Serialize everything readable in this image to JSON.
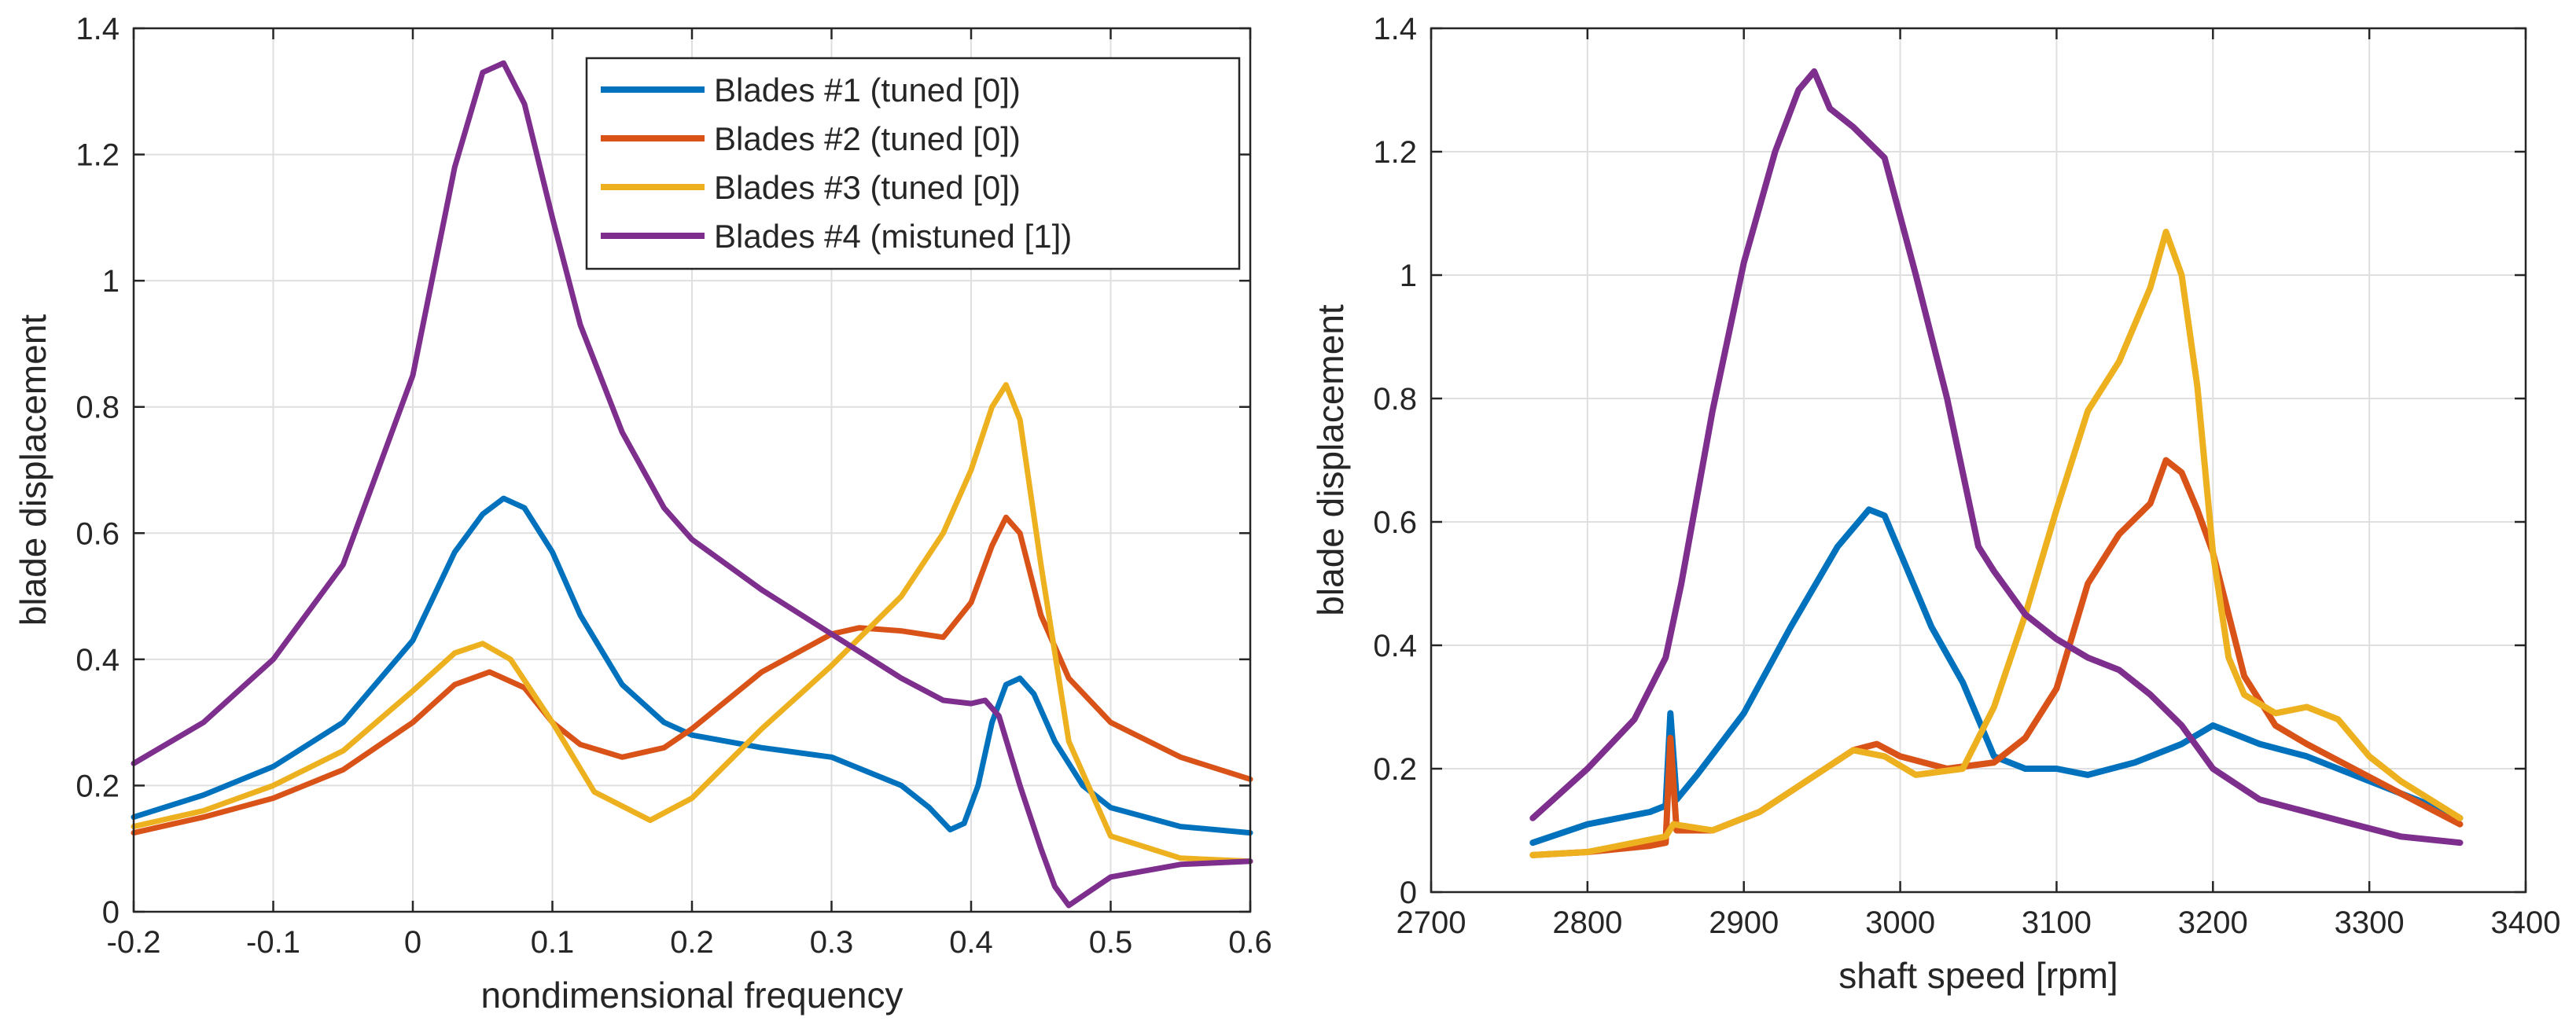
{
  "chart_data": [
    {
      "type": "line",
      "xlabel": "nondimensional frequency",
      "ylabel": "blade displacement",
      "xlim": [
        -0.2,
        0.6
      ],
      "ylim": [
        0,
        1.4
      ],
      "xticks": [
        "-0.2",
        "-0.1",
        "0",
        "0.1",
        "0.2",
        "0.3",
        "0.4",
        "0.5",
        "0.6"
      ],
      "yticks": [
        "0",
        "0.2",
        "0.4",
        "0.6",
        "0.8",
        "1",
        "1.2",
        "1.4"
      ],
      "grid": true,
      "legend_position": "top-right",
      "series": [
        {
          "name": "Blades #1 (tuned [0])",
          "color": "#0072BD",
          "x": [
            -0.2,
            -0.15,
            -0.1,
            -0.05,
            0,
            0.03,
            0.05,
            0.065,
            0.08,
            0.1,
            0.12,
            0.15,
            0.18,
            0.2,
            0.25,
            0.3,
            0.35,
            0.37,
            0.385,
            0.395,
            0.405,
            0.415,
            0.425,
            0.435,
            0.445,
            0.46,
            0.48,
            0.5,
            0.55,
            0.6
          ],
          "values": [
            0.15,
            0.185,
            0.23,
            0.3,
            0.43,
            0.57,
            0.63,
            0.655,
            0.64,
            0.57,
            0.47,
            0.36,
            0.3,
            0.28,
            0.26,
            0.245,
            0.2,
            0.165,
            0.13,
            0.14,
            0.2,
            0.3,
            0.36,
            0.37,
            0.345,
            0.27,
            0.2,
            0.165,
            0.135,
            0.125
          ]
        },
        {
          "name": "Blades #2 (tuned [0])",
          "color": "#D95319",
          "x": [
            -0.2,
            -0.15,
            -0.1,
            -0.05,
            0,
            0.03,
            0.055,
            0.08,
            0.1,
            0.12,
            0.15,
            0.18,
            0.2,
            0.25,
            0.3,
            0.32,
            0.35,
            0.38,
            0.4,
            0.415,
            0.425,
            0.435,
            0.45,
            0.47,
            0.5,
            0.55,
            0.6
          ],
          "values": [
            0.125,
            0.15,
            0.18,
            0.225,
            0.3,
            0.36,
            0.38,
            0.355,
            0.3,
            0.265,
            0.245,
            0.26,
            0.29,
            0.38,
            0.44,
            0.45,
            0.445,
            0.435,
            0.49,
            0.58,
            0.625,
            0.6,
            0.47,
            0.37,
            0.3,
            0.245,
            0.21
          ]
        },
        {
          "name": "Blades #3 (tuned [0])",
          "color": "#EDB120",
          "x": [
            -0.2,
            -0.15,
            -0.1,
            -0.05,
            0,
            0.03,
            0.05,
            0.07,
            0.1,
            0.13,
            0.17,
            0.2,
            0.25,
            0.3,
            0.35,
            0.38,
            0.4,
            0.415,
            0.425,
            0.435,
            0.45,
            0.47,
            0.5,
            0.55,
            0.6
          ],
          "values": [
            0.135,
            0.16,
            0.2,
            0.255,
            0.35,
            0.41,
            0.425,
            0.4,
            0.3,
            0.19,
            0.145,
            0.18,
            0.29,
            0.39,
            0.5,
            0.6,
            0.7,
            0.8,
            0.835,
            0.78,
            0.55,
            0.27,
            0.12,
            0.085,
            0.08
          ]
        },
        {
          "name": "Blades #4 (mistuned [1])",
          "color": "#7E2F8E",
          "x": [
            -0.2,
            -0.15,
            -0.1,
            -0.05,
            0,
            0.03,
            0.05,
            0.065,
            0.08,
            0.1,
            0.12,
            0.15,
            0.18,
            0.2,
            0.25,
            0.3,
            0.35,
            0.38,
            0.4,
            0.41,
            0.42,
            0.435,
            0.45,
            0.46,
            0.47,
            0.48,
            0.5,
            0.55,
            0.6
          ],
          "values": [
            0.235,
            0.3,
            0.4,
            0.55,
            0.85,
            1.18,
            1.33,
            1.345,
            1.28,
            1.1,
            0.93,
            0.76,
            0.64,
            0.59,
            0.51,
            0.44,
            0.37,
            0.335,
            0.33,
            0.335,
            0.31,
            0.2,
            0.1,
            0.04,
            0.01,
            0.025,
            0.055,
            0.075,
            0.08
          ]
        }
      ]
    },
    {
      "type": "line",
      "xlabel": "shaft speed [rpm]",
      "ylabel": "blade displacement",
      "xlim": [
        2700,
        3400
      ],
      "ylim": [
        0,
        1.4
      ],
      "xticks": [
        "2700",
        "2800",
        "2900",
        "3000",
        "3100",
        "3200",
        "3300",
        "3400"
      ],
      "yticks": [
        "0",
        "0.2",
        "0.4",
        "0.6",
        "0.8",
        "1",
        "1.2",
        "1.4"
      ],
      "grid": true,
      "series": [
        {
          "name": "Blades #1",
          "color": "#0072BD",
          "x": [
            2765,
            2800,
            2840,
            2850,
            2853,
            2857,
            2870,
            2900,
            2930,
            2960,
            2980,
            2990,
            3000,
            3020,
            3040,
            3050,
            3060,
            3080,
            3100,
            3120,
            3150,
            3180,
            3200,
            3230,
            3260,
            3290,
            3320,
            3340,
            3358
          ],
          "values": [
            0.08,
            0.11,
            0.13,
            0.14,
            0.29,
            0.15,
            0.19,
            0.29,
            0.43,
            0.56,
            0.62,
            0.61,
            0.55,
            0.43,
            0.34,
            0.28,
            0.22,
            0.2,
            0.2,
            0.19,
            0.21,
            0.24,
            0.27,
            0.24,
            0.22,
            0.19,
            0.16,
            0.14,
            0.12
          ]
        },
        {
          "name": "Blades #2",
          "color": "#D95319",
          "x": [
            2765,
            2800,
            2840,
            2850,
            2853,
            2857,
            2880,
            2910,
            2940,
            2970,
            2985,
            3000,
            3030,
            3060,
            3080,
            3100,
            3120,
            3140,
            3160,
            3170,
            3180,
            3190,
            3200,
            3220,
            3240,
            3260,
            3290,
            3320,
            3358
          ],
          "values": [
            0.06,
            0.065,
            0.075,
            0.08,
            0.25,
            0.1,
            0.1,
            0.13,
            0.18,
            0.23,
            0.24,
            0.22,
            0.2,
            0.21,
            0.25,
            0.33,
            0.5,
            0.58,
            0.63,
            0.7,
            0.68,
            0.62,
            0.55,
            0.35,
            0.27,
            0.24,
            0.2,
            0.16,
            0.11
          ]
        },
        {
          "name": "Blades #3",
          "color": "#EDB120",
          "x": [
            2765,
            2800,
            2850,
            2855,
            2880,
            2910,
            2940,
            2970,
            2990,
            3010,
            3040,
            3060,
            3080,
            3100,
            3120,
            3140,
            3160,
            3170,
            3180,
            3190,
            3200,
            3210,
            3220,
            3240,
            3260,
            3280,
            3300,
            3320,
            3358
          ],
          "values": [
            0.06,
            0.065,
            0.09,
            0.11,
            0.1,
            0.13,
            0.18,
            0.23,
            0.22,
            0.19,
            0.2,
            0.3,
            0.45,
            0.62,
            0.78,
            0.86,
            0.98,
            1.07,
            1.0,
            0.82,
            0.55,
            0.38,
            0.32,
            0.29,
            0.3,
            0.28,
            0.22,
            0.18,
            0.12
          ]
        },
        {
          "name": "Blades #4",
          "color": "#7E2F8E",
          "x": [
            2765,
            2800,
            2830,
            2850,
            2860,
            2880,
            2900,
            2920,
            2935,
            2945,
            2955,
            2970,
            2990,
            3010,
            3030,
            3050,
            3060,
            3080,
            3100,
            3120,
            3140,
            3160,
            3180,
            3200,
            3230,
            3260,
            3290,
            3320,
            3358
          ],
          "values": [
            0.12,
            0.2,
            0.28,
            0.38,
            0.5,
            0.78,
            1.02,
            1.2,
            1.3,
            1.33,
            1.27,
            1.24,
            1.19,
            1.0,
            0.8,
            0.56,
            0.52,
            0.45,
            0.41,
            0.38,
            0.36,
            0.32,
            0.27,
            0.2,
            0.15,
            0.13,
            0.11,
            0.09,
            0.08
          ]
        }
      ]
    }
  ]
}
